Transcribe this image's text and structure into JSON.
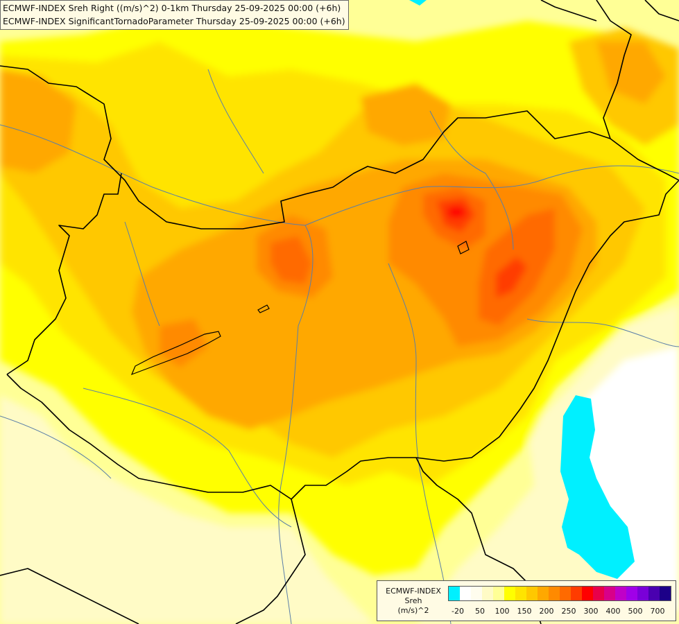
{
  "title": {
    "line1": "ECMWF-INDEX Sreh Right ((m/s)^2) 0-1km Thursday 25-09-2025 00:00 (+6h)",
    "line2": "ECMWF-INDEX SignificantTornadoParameter Thursday 25-09-2025 00:00 (+6h)"
  },
  "legend": {
    "caption": [
      "ECMWF-INDEX",
      "Sreh",
      "(m/s)^2"
    ],
    "colors": [
      "#00f0ff",
      "#ffffff",
      "#fffdee",
      "#fffbc6",
      "#ffff96",
      "#ffff00",
      "#ffe400",
      "#ffc800",
      "#ffa800",
      "#ff8a00",
      "#ff6a00",
      "#ff3c00",
      "#ff0000",
      "#e8004a",
      "#d8008a",
      "#c000c8",
      "#a000e8",
      "#7a00d8",
      "#4a00b0",
      "#1c0088"
    ],
    "tick_labels": [
      "-20",
      "50",
      "100",
      "150",
      "200",
      "250",
      "300",
      "400",
      "500",
      "700"
    ]
  },
  "map": {
    "field_colors": {
      "pale": "#fffbc6",
      "light_yellow": "#ffff96",
      "yellow": "#ffff00",
      "gold": "#ffe400",
      "amber": "#ffc800",
      "orange": "#ffa800",
      "dark_orange": "#ff8a00",
      "red_orange": "#ff6a00",
      "red": "#ff3c00",
      "core": "#ff0000",
      "cyan": "#00f0ff",
      "white": "#ffffff"
    },
    "border_color": "#000000",
    "river_color": "#5a7fa8"
  }
}
